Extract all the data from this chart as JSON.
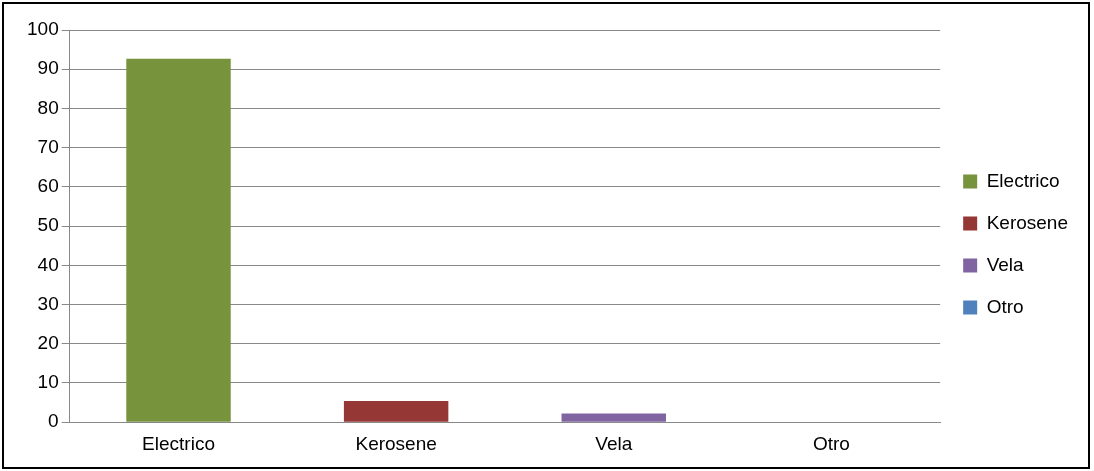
{
  "chart_data": {
    "type": "bar",
    "categories": [
      "Electrico",
      "Kerosene",
      "Vela",
      "Otro"
    ],
    "series": [
      {
        "name": "Electrico",
        "color": "#77933c",
        "values": [
          92.7,
          null,
          null,
          null
        ]
      },
      {
        "name": "Kerosene",
        "color": "#953735",
        "values": [
          null,
          5.4,
          null,
          null
        ]
      },
      {
        "name": "Vela",
        "color": "#8064a2",
        "values": [
          null,
          null,
          2.2,
          null
        ]
      },
      {
        "name": "Otro",
        "color": "#4f81bd",
        "values": [
          null,
          null,
          null,
          0
        ]
      }
    ],
    "ylim": [
      0,
      100
    ],
    "yticks": [
      0,
      10,
      20,
      30,
      40,
      50,
      60,
      70,
      80,
      90,
      100
    ],
    "grid": "y",
    "legend": "right"
  }
}
